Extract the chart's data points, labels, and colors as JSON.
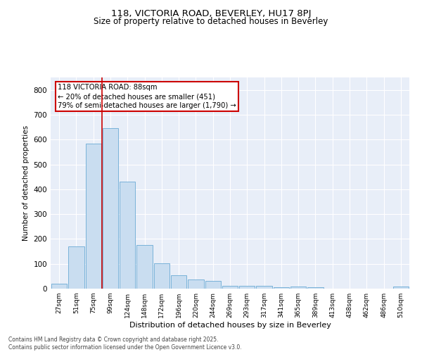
{
  "title_line1": "118, VICTORIA ROAD, BEVERLEY, HU17 8PJ",
  "title_line2": "Size of property relative to detached houses in Beverley",
  "xlabel": "Distribution of detached houses by size in Beverley",
  "ylabel": "Number of detached properties",
  "categories": [
    "27sqm",
    "51sqm",
    "75sqm",
    "99sqm",
    "124sqm",
    "148sqm",
    "172sqm",
    "196sqm",
    "220sqm",
    "244sqm",
    "269sqm",
    "293sqm",
    "317sqm",
    "341sqm",
    "365sqm",
    "389sqm",
    "413sqm",
    "438sqm",
    "462sqm",
    "486sqm",
    "510sqm"
  ],
  "values": [
    20,
    170,
    585,
    645,
    430,
    175,
    103,
    55,
    37,
    30,
    12,
    10,
    10,
    5,
    8,
    5,
    0,
    0,
    0,
    0,
    8
  ],
  "bar_color": "#c9ddf0",
  "bar_edge_color": "#6aaad4",
  "vline_color": "#cc0000",
  "annotation_text": "118 VICTORIA ROAD: 88sqm\n← 20% of detached houses are smaller (451)\n79% of semi-detached houses are larger (1,790) →",
  "annotation_box_color": "white",
  "annotation_box_edge": "#cc0000",
  "ylim_max": 850,
  "yticks": [
    0,
    100,
    200,
    300,
    400,
    500,
    600,
    700,
    800
  ],
  "background_color": "#e8eef8",
  "grid_color": "#ffffff",
  "footer_line1": "Contains HM Land Registry data © Crown copyright and database right 2025.",
  "footer_line2": "Contains public sector information licensed under the Open Government Licence v3.0."
}
